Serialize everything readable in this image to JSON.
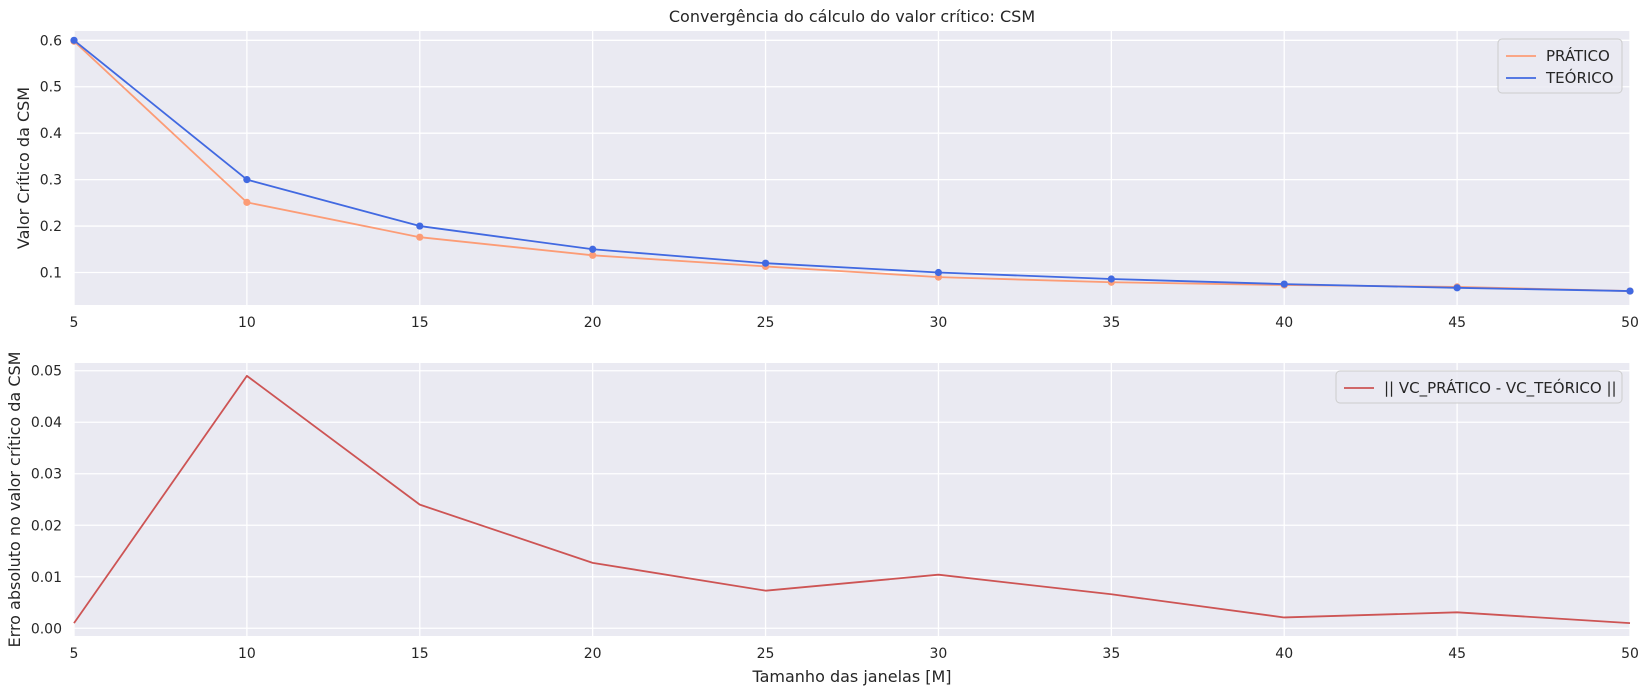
{
  "chart_data": [
    {
      "type": "line",
      "title": "Convergência do cálculo do valor crítico: CSM",
      "xlabel": "",
      "ylabel": "Valor Crítico da CSM",
      "x": [
        5,
        10,
        15,
        20,
        25,
        30,
        35,
        40,
        45,
        50
      ],
      "xlim": [
        5,
        50
      ],
      "ylim": [
        0.03,
        0.62
      ],
      "xticks": [
        "5",
        "10",
        "15",
        "20",
        "25",
        "30",
        "35",
        "40",
        "45",
        "50"
      ],
      "yticks": [
        "0.1",
        "0.2",
        "0.3",
        "0.4",
        "0.5",
        "0.6"
      ],
      "grid": true,
      "legend_position": "top-right",
      "series": [
        {
          "name": "PRÁTICO",
          "color": "#fc9c76",
          "markers": true,
          "values": [
            0.598,
            0.251,
            0.176,
            0.137,
            0.113,
            0.09,
            0.079,
            0.073,
            0.069,
            0.06
          ]
        },
        {
          "name": "TEÓRICO",
          "color": "#4169e1",
          "markers": true,
          "values": [
            0.6,
            0.3,
            0.2,
            0.15,
            0.12,
            0.1,
            0.086,
            0.075,
            0.067,
            0.06
          ]
        }
      ]
    },
    {
      "type": "line",
      "title": "",
      "xlabel": "Tamanho das janelas [M]",
      "ylabel": "Erro absoluto no valor crítico da CSM",
      "x": [
        5,
        10,
        15,
        20,
        25,
        30,
        35,
        40,
        45,
        50
      ],
      "xlim": [
        5,
        50
      ],
      "ylim": [
        -0.0015,
        0.0515
      ],
      "xticks": [
        "5",
        "10",
        "15",
        "20",
        "25",
        "30",
        "35",
        "40",
        "45",
        "50"
      ],
      "yticks": [
        "0.00",
        "0.01",
        "0.02",
        "0.03",
        "0.04",
        "0.05"
      ],
      "grid": true,
      "legend_position": "top-right",
      "series": [
        {
          "name": "|| VC_PRÁTICO - VC_TEÓRICO ||",
          "color": "#cd5454",
          "markers": false,
          "values": [
            0.001,
            0.049,
            0.024,
            0.0127,
            0.0073,
            0.0104,
            0.0066,
            0.0021,
            0.0031,
            0.001
          ]
        }
      ]
    }
  ],
  "colors": {
    "panel_background": "#eaeaf2",
    "grid": "#ffffff",
    "legend_border": "#cccccc"
  }
}
